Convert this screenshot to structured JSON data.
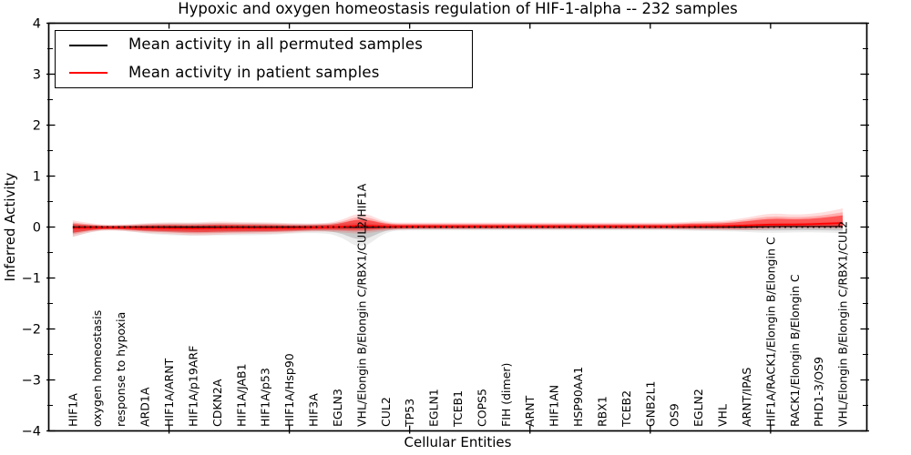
{
  "title": "Hypoxic and oxygen homeostasis regulation of HIF-1-alpha -- 232 samples",
  "legend": {
    "items": [
      {
        "label": "Mean activity in all permuted samples",
        "color": "#000000"
      },
      {
        "label": "Mean activity in patient samples",
        "color": "#ff0000"
      }
    ]
  },
  "axes": {
    "xlabel": "Cellular Entities",
    "ylabel": "Inferred Activity"
  },
  "chart_data": {
    "type": "line",
    "title": "Hypoxic and oxygen homeostasis regulation of HIF-1-alpha -- 232 samples",
    "xlabel": "Cellular Entities",
    "ylabel": "Inferred Activity",
    "ylim": [
      -4,
      4
    ],
    "yticks": [
      -4,
      -3,
      -2,
      -1,
      0,
      1,
      2,
      3,
      4
    ],
    "xlim": [
      0,
      34
    ],
    "xticks": [
      5,
      10,
      15,
      20,
      25,
      30
    ],
    "grid": false,
    "legend_position": "upper left",
    "zero_reference_line": 0,
    "categories": [
      "HIF1A",
      "oxygen homeostasis",
      "response to hypoxia",
      "ARD1A",
      "HIF1A/ARNT",
      "HIF1A/p19ARF",
      "CDKN2A",
      "HIF1A/JAB1",
      "HIF1A/p53",
      "HIF1A/Hsp90",
      "HIF3A",
      "EGLN3",
      "VHL/Elongin B/Elongin C/RBX1/CUL2/HIF1A",
      "CUL2",
      "TP53",
      "EGLN1",
      "TCEB1",
      "COPS5",
      "FIH (dimer)",
      "ARNT",
      "HIF1AN",
      "HSP90AA1",
      "RBX1",
      "TCEB2",
      "GNB2L1",
      "OS9",
      "EGLN2",
      "VHL",
      "ARNT/IPAS",
      "HIF1A/RACK1/Elongin B/Elongin C",
      "RACK1/Elongin B/Elongin C",
      "PHD1-3/OS9",
      "VHL/Elongin B/Elongin C/RBX1/CUL2"
    ],
    "series": [
      {
        "name": "Mean activity in all permuted samples",
        "color": "#000000",
        "values": [
          0,
          0,
          0,
          0,
          0,
          0,
          0,
          0,
          0,
          0,
          0,
          0,
          -0.01,
          0,
          0,
          0,
          0,
          0,
          0,
          0,
          0,
          0,
          0,
          0,
          0,
          0,
          0,
          0,
          0,
          0.01,
          0.01,
          0.01,
          0.01
        ]
      },
      {
        "name": "Mean activity in patient samples",
        "color": "#ff0000",
        "values": [
          -0.02,
          -0.01,
          -0.01,
          -0.02,
          -0.02,
          -0.03,
          -0.02,
          -0.02,
          -0.02,
          -0.02,
          -0.01,
          0,
          0.03,
          0.01,
          0.01,
          0.01,
          0.01,
          0.01,
          0.01,
          0.01,
          0.01,
          0.01,
          0.01,
          0.01,
          0.01,
          0.01,
          0.02,
          0.02,
          0.03,
          0.05,
          0.05,
          0.06,
          0.08
        ]
      }
    ],
    "bands": {
      "permuted_distribution": {
        "color": "#808080",
        "hi": [
          0.05,
          0.02,
          0.02,
          0.04,
          0.05,
          0.05,
          0.05,
          0.05,
          0.05,
          0.04,
          0.04,
          0.05,
          0.1,
          0.03,
          0.03,
          0.03,
          0.03,
          0.03,
          0.03,
          0.03,
          0.03,
          0.03,
          0.03,
          0.03,
          0.03,
          0.03,
          0.03,
          0.03,
          0.04,
          0.05,
          0.05,
          0.05,
          0.06
        ],
        "lo": [
          0.12,
          0.04,
          0.04,
          0.08,
          0.1,
          0.11,
          0.1,
          0.1,
          0.1,
          0.08,
          0.07,
          0.09,
          0.28,
          0.05,
          0.04,
          0.04,
          0.04,
          0.04,
          0.04,
          0.04,
          0.04,
          0.04,
          0.04,
          0.04,
          0.04,
          0.04,
          0.05,
          0.05,
          0.06,
          0.08,
          0.07,
          0.07,
          0.08
        ]
      },
      "patient_distribution": {
        "color": "#ff0000",
        "hi": [
          0.08,
          0.03,
          0.03,
          0.05,
          0.06,
          0.06,
          0.07,
          0.06,
          0.06,
          0.05,
          0.04,
          0.05,
          0.15,
          0.04,
          0.04,
          0.04,
          0.04,
          0.04,
          0.04,
          0.04,
          0.04,
          0.04,
          0.04,
          0.04,
          0.04,
          0.04,
          0.05,
          0.05,
          0.08,
          0.12,
          0.1,
          0.11,
          0.15
        ],
        "lo": [
          0.09,
          0.03,
          0.03,
          0.05,
          0.06,
          0.07,
          0.07,
          0.06,
          0.06,
          0.05,
          0.04,
          0.05,
          0.09,
          0.04,
          0.03,
          0.03,
          0.03,
          0.03,
          0.03,
          0.03,
          0.03,
          0.03,
          0.03,
          0.03,
          0.03,
          0.03,
          0.04,
          0.04,
          0.05,
          0.05,
          0.04,
          0.05,
          0.06
        ]
      }
    }
  }
}
